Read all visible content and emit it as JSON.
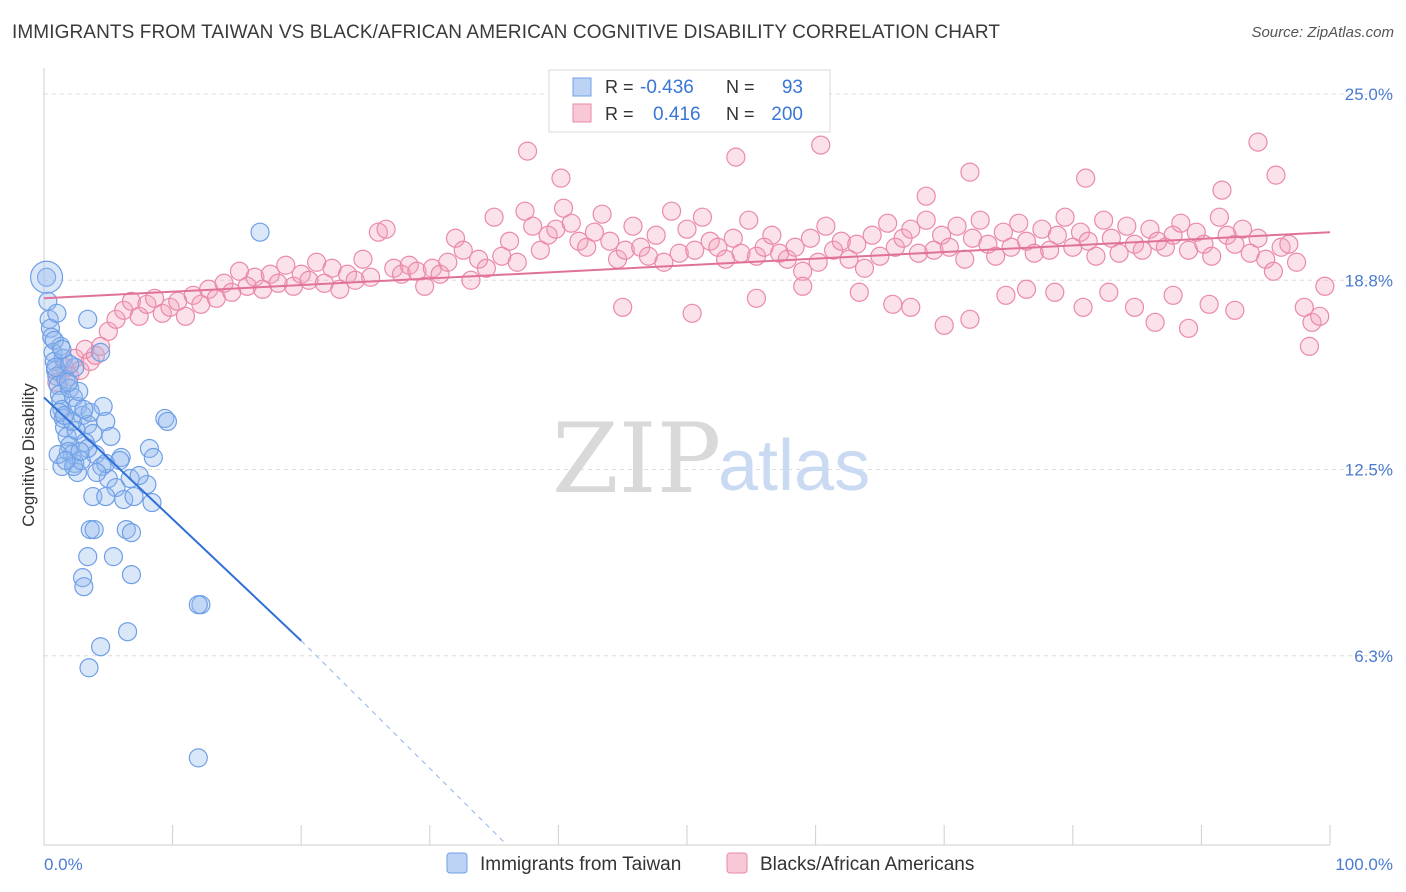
{
  "title": "IMMIGRANTS FROM TAIWAN VS BLACK/AFRICAN AMERICAN COGNITIVE DISABILITY CORRELATION CHART",
  "source": "Source: ZipAtlas.com",
  "watermark": {
    "zip": "ZIP",
    "atlas": "atlas"
  },
  "legend": {
    "r_label": "R =",
    "n_label": "N =",
    "series": [
      {
        "name": "Immigrants from Taiwan",
        "r": "-0.436",
        "n": "93",
        "color": "#6f9fe6",
        "fill": "#bcd3f5"
      },
      {
        "name": "Blacks/African Americans",
        "r": "0.416",
        "n": "200",
        "color": "#ea8aa8",
        "fill": "#f8c8d7"
      }
    ]
  },
  "chart_data": {
    "type": "scatter",
    "title": "IMMIGRANTS FROM TAIWAN VS BLACK/AFRICAN AMERICAN COGNITIVE DISABILITY CORRELATION CHART",
    "xlabel": "",
    "ylabel": "Cognitive Disability",
    "xlim": [
      0,
      100
    ],
    "ylim": [
      0,
      25.8
    ],
    "x_tick_labels": [
      "0.0%",
      "100.0%"
    ],
    "y_ticks": [
      6.3,
      12.5,
      18.8,
      25.0
    ],
    "y_tick_labels": [
      "6.3%",
      "12.5%",
      "18.8%",
      "25.0%"
    ],
    "grid": true,
    "legend_position": "top-center",
    "series": [
      {
        "name": "Immigrants from Taiwan",
        "color": "#6f9fe6",
        "trend": {
          "x": [
            0,
            20
          ],
          "y": [
            14.9,
            6.8
          ],
          "dashed_to": [
            36,
            0
          ]
        },
        "points": [
          [
            0.2,
            18.9
          ],
          [
            0.3,
            18.1
          ],
          [
            0.4,
            17.5
          ],
          [
            0.5,
            17.2
          ],
          [
            0.6,
            16.9
          ],
          [
            0.7,
            16.4
          ],
          [
            0.8,
            16.1
          ],
          [
            0.9,
            15.8
          ],
          [
            1.0,
            15.6
          ],
          [
            1.1,
            15.3
          ],
          [
            1.2,
            15.0
          ],
          [
            1.3,
            14.8
          ],
          [
            1.4,
            14.5
          ],
          [
            1.5,
            14.2
          ],
          [
            1.6,
            13.9
          ],
          [
            1.8,
            13.6
          ],
          [
            2.0,
            13.3
          ],
          [
            2.2,
            13.0
          ],
          [
            2.4,
            12.7
          ],
          [
            2.6,
            12.4
          ],
          [
            1.0,
            17.7
          ],
          [
            1.3,
            16.6
          ],
          [
            1.5,
            16.2
          ],
          [
            1.7,
            15.5
          ],
          [
            2.0,
            15.2
          ],
          [
            2.3,
            14.9
          ],
          [
            2.6,
            14.6
          ],
          [
            3.0,
            14.3
          ],
          [
            3.4,
            14.0
          ],
          [
            3.8,
            13.7
          ],
          [
            0.8,
            16.8
          ],
          [
            1.2,
            14.4
          ],
          [
            1.9,
            13.1
          ],
          [
            2.5,
            13.8
          ],
          [
            3.2,
            13.4
          ],
          [
            4.0,
            13.0
          ],
          [
            4.5,
            12.6
          ],
          [
            5.0,
            12.2
          ],
          [
            5.6,
            11.9
          ],
          [
            6.2,
            11.5
          ],
          [
            3.4,
            17.5
          ],
          [
            4.4,
            16.4
          ],
          [
            4.6,
            14.6
          ],
          [
            4.8,
            14.1
          ],
          [
            5.2,
            13.6
          ],
          [
            6.0,
            12.9
          ],
          [
            6.7,
            12.2
          ],
          [
            7.0,
            11.6
          ],
          [
            8.2,
            13.2
          ],
          [
            8.5,
            12.9
          ],
          [
            9.4,
            14.2
          ],
          [
            9.6,
            14.1
          ],
          [
            8.0,
            12.0
          ],
          [
            8.4,
            11.4
          ],
          [
            3.8,
            11.6
          ],
          [
            4.8,
            11.6
          ],
          [
            3.6,
            10.5
          ],
          [
            3.9,
            10.5
          ],
          [
            6.4,
            10.5
          ],
          [
            6.8,
            10.4
          ],
          [
            3.4,
            9.6
          ],
          [
            5.4,
            9.6
          ],
          [
            3.0,
            8.9
          ],
          [
            6.8,
            9.0
          ],
          [
            3.1,
            8.6
          ],
          [
            12.2,
            8.0
          ],
          [
            12.0,
            8.0
          ],
          [
            6.5,
            7.1
          ],
          [
            4.4,
            6.6
          ],
          [
            3.5,
            5.9
          ],
          [
            12.0,
            2.9
          ],
          [
            16.8,
            20.4
          ],
          [
            1.4,
            12.6
          ],
          [
            2.3,
            12.6
          ],
          [
            3.4,
            13.2
          ],
          [
            4.8,
            12.7
          ],
          [
            2.9,
            12.8
          ],
          [
            3.6,
            14.4
          ],
          [
            2.7,
            15.1
          ],
          [
            1.1,
            13.0
          ],
          [
            1.7,
            12.8
          ],
          [
            2.8,
            13.1
          ],
          [
            4.1,
            12.4
          ],
          [
            5.9,
            12.8
          ],
          [
            7.4,
            12.3
          ],
          [
            2.2,
            14.1
          ],
          [
            3.1,
            14.5
          ],
          [
            1.9,
            15.4
          ],
          [
            2.4,
            15.9
          ],
          [
            1.6,
            14.3
          ],
          [
            0.9,
            15.9
          ],
          [
            2.0,
            16.0
          ],
          [
            1.4,
            16.5
          ]
        ]
      },
      {
        "name": "Blacks/African Americans",
        "color": "#ea8aa8",
        "trend": {
          "x": [
            0,
            100
          ],
          "y": [
            18.2,
            20.4
          ]
        },
        "points": [
          [
            1.0,
            15.4
          ],
          [
            1.3,
            15.7
          ],
          [
            1.6,
            15.9
          ],
          [
            2.0,
            15.6
          ],
          [
            2.4,
            16.2
          ],
          [
            2.8,
            15.8
          ],
          [
            3.2,
            16.5
          ],
          [
            3.6,
            16.1
          ],
          [
            4.0,
            16.3
          ],
          [
            4.4,
            16.6
          ],
          [
            5.0,
            17.1
          ],
          [
            5.6,
            17.5
          ],
          [
            6.2,
            17.8
          ],
          [
            6.8,
            18.1
          ],
          [
            7.4,
            17.6
          ],
          [
            8.0,
            18.0
          ],
          [
            8.6,
            18.2
          ],
          [
            9.2,
            17.7
          ],
          [
            9.8,
            17.9
          ],
          [
            10.4,
            18.1
          ],
          [
            11.0,
            17.6
          ],
          [
            11.6,
            18.3
          ],
          [
            12.2,
            18.0
          ],
          [
            12.8,
            18.5
          ],
          [
            13.4,
            18.2
          ],
          [
            14.0,
            18.7
          ],
          [
            14.6,
            18.4
          ],
          [
            15.2,
            19.1
          ],
          [
            15.8,
            18.6
          ],
          [
            16.4,
            18.9
          ],
          [
            17.0,
            18.5
          ],
          [
            17.6,
            19.0
          ],
          [
            18.2,
            18.7
          ],
          [
            18.8,
            19.3
          ],
          [
            19.4,
            18.6
          ],
          [
            20.0,
            19.0
          ],
          [
            20.6,
            18.8
          ],
          [
            21.2,
            19.4
          ],
          [
            21.8,
            18.7
          ],
          [
            22.4,
            19.2
          ],
          [
            23.0,
            18.5
          ],
          [
            23.6,
            19.0
          ],
          [
            24.2,
            18.8
          ],
          [
            24.8,
            19.5
          ],
          [
            25.4,
            18.9
          ],
          [
            26.0,
            20.4
          ],
          [
            26.6,
            20.5
          ],
          [
            27.2,
            19.2
          ],
          [
            27.8,
            19.0
          ],
          [
            28.4,
            19.3
          ],
          [
            29.0,
            19.1
          ],
          [
            29.6,
            18.6
          ],
          [
            30.2,
            19.2
          ],
          [
            30.8,
            19.0
          ],
          [
            31.4,
            19.4
          ],
          [
            32.0,
            20.2
          ],
          [
            32.6,
            19.8
          ],
          [
            33.2,
            18.8
          ],
          [
            33.8,
            19.5
          ],
          [
            34.4,
            19.2
          ],
          [
            35.0,
            20.9
          ],
          [
            35.6,
            19.6
          ],
          [
            36.2,
            20.1
          ],
          [
            36.8,
            19.4
          ],
          [
            37.4,
            21.1
          ],
          [
            38.0,
            20.6
          ],
          [
            38.6,
            19.8
          ],
          [
            39.2,
            20.3
          ],
          [
            39.8,
            20.5
          ],
          [
            40.4,
            21.2
          ],
          [
            41.0,
            20.7
          ],
          [
            41.6,
            20.1
          ],
          [
            42.2,
            19.9
          ],
          [
            42.8,
            20.4
          ],
          [
            43.4,
            21.0
          ],
          [
            44.0,
            20.1
          ],
          [
            44.6,
            19.5
          ],
          [
            45.2,
            19.8
          ],
          [
            45.8,
            20.6
          ],
          [
            46.4,
            19.9
          ],
          [
            47.0,
            19.6
          ],
          [
            47.6,
            20.3
          ],
          [
            48.2,
            19.4
          ],
          [
            48.8,
            21.1
          ],
          [
            49.4,
            19.7
          ],
          [
            50.0,
            20.5
          ],
          [
            50.6,
            19.8
          ],
          [
            51.2,
            20.9
          ],
          [
            51.8,
            20.1
          ],
          [
            52.4,
            19.9
          ],
          [
            53.0,
            19.5
          ],
          [
            53.6,
            20.2
          ],
          [
            54.2,
            19.7
          ],
          [
            54.8,
            20.8
          ],
          [
            55.4,
            19.6
          ],
          [
            56.0,
            19.9
          ],
          [
            56.6,
            20.3
          ],
          [
            57.2,
            19.7
          ],
          [
            57.8,
            19.5
          ],
          [
            58.4,
            19.9
          ],
          [
            59.0,
            19.1
          ],
          [
            59.6,
            20.2
          ],
          [
            60.2,
            19.4
          ],
          [
            60.8,
            20.6
          ],
          [
            61.4,
            19.8
          ],
          [
            62.0,
            20.1
          ],
          [
            62.6,
            19.5
          ],
          [
            63.2,
            20.0
          ],
          [
            63.8,
            19.2
          ],
          [
            64.4,
            20.3
          ],
          [
            65.0,
            19.6
          ],
          [
            65.6,
            20.7
          ],
          [
            66.2,
            19.9
          ],
          [
            66.8,
            20.2
          ],
          [
            67.4,
            20.5
          ],
          [
            68.0,
            19.7
          ],
          [
            68.6,
            20.8
          ],
          [
            69.2,
            19.8
          ],
          [
            69.8,
            20.3
          ],
          [
            70.4,
            19.9
          ],
          [
            71.0,
            20.6
          ],
          [
            71.6,
            19.5
          ],
          [
            72.2,
            20.2
          ],
          [
            72.8,
            20.8
          ],
          [
            73.4,
            20.0
          ],
          [
            74.0,
            19.6
          ],
          [
            74.6,
            20.4
          ],
          [
            75.2,
            19.9
          ],
          [
            75.8,
            20.7
          ],
          [
            76.4,
            20.1
          ],
          [
            77.0,
            19.7
          ],
          [
            77.6,
            20.5
          ],
          [
            78.2,
            19.8
          ],
          [
            78.8,
            20.3
          ],
          [
            79.4,
            20.9
          ],
          [
            80.0,
            19.9
          ],
          [
            80.6,
            20.4
          ],
          [
            81.2,
            20.1
          ],
          [
            81.8,
            19.6
          ],
          [
            82.4,
            20.8
          ],
          [
            83.0,
            20.2
          ],
          [
            83.6,
            19.7
          ],
          [
            84.2,
            20.6
          ],
          [
            84.8,
            20.0
          ],
          [
            85.4,
            19.8
          ],
          [
            86.0,
            20.5
          ],
          [
            86.6,
            20.1
          ],
          [
            87.2,
            19.9
          ],
          [
            87.8,
            20.3
          ],
          [
            88.4,
            20.7
          ],
          [
            89.0,
            19.8
          ],
          [
            89.6,
            20.4
          ],
          [
            90.2,
            20.0
          ],
          [
            90.8,
            19.6
          ],
          [
            91.4,
            20.9
          ],
          [
            92.0,
            20.3
          ],
          [
            92.6,
            20.0
          ],
          [
            93.2,
            20.5
          ],
          [
            93.8,
            19.7
          ],
          [
            94.4,
            20.2
          ],
          [
            95.0,
            19.5
          ],
          [
            95.6,
            19.1
          ],
          [
            96.2,
            19.9
          ],
          [
            96.8,
            20.0
          ],
          [
            97.4,
            19.4
          ],
          [
            98.0,
            17.9
          ],
          [
            98.6,
            17.4
          ],
          [
            99.2,
            17.6
          ],
          [
            99.6,
            18.6
          ],
          [
            98.4,
            16.6
          ],
          [
            37.6,
            23.1
          ],
          [
            53.8,
            22.9
          ],
          [
            60.4,
            23.3
          ],
          [
            72.0,
            22.4
          ],
          [
            81.0,
            22.2
          ],
          [
            94.4,
            23.4
          ],
          [
            95.8,
            22.3
          ],
          [
            40.2,
            22.2
          ],
          [
            68.6,
            21.6
          ],
          [
            91.6,
            21.8
          ],
          [
            78.6,
            18.4
          ],
          [
            80.8,
            17.9
          ],
          [
            82.8,
            18.4
          ],
          [
            84.8,
            17.9
          ],
          [
            86.4,
            17.4
          ],
          [
            87.8,
            18.3
          ],
          [
            89.0,
            17.2
          ],
          [
            90.6,
            18.0
          ],
          [
            92.6,
            17.8
          ],
          [
            45.0,
            17.9
          ],
          [
            50.4,
            17.7
          ],
          [
            55.4,
            18.2
          ],
          [
            59.0,
            18.6
          ],
          [
            63.4,
            18.4
          ],
          [
            66.0,
            18.0
          ],
          [
            67.4,
            17.9
          ],
          [
            70.0,
            17.3
          ],
          [
            72.0,
            17.5
          ],
          [
            74.8,
            18.3
          ],
          [
            76.4,
            18.5
          ]
        ]
      }
    ]
  }
}
